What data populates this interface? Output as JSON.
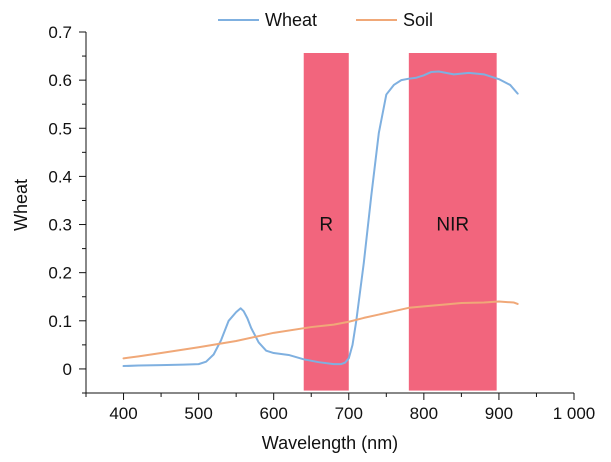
{
  "chart_data": {
    "type": "line",
    "title": "",
    "xlabel": "Wavelength (nm)",
    "ylabel": "Wheat",
    "xlim": [
      350,
      1000
    ],
    "ylim": [
      -0.05,
      0.7
    ],
    "xticks": [
      400,
      500,
      600,
      700,
      800,
      900,
      1000
    ],
    "xtick_labels": [
      "400",
      "500",
      "600",
      "700",
      "800",
      "900",
      "1 000"
    ],
    "yticks": [
      0,
      0.1,
      0.2,
      0.3,
      0.4,
      0.5,
      0.6,
      0.7
    ],
    "ytick_labels": [
      "0",
      "0.1",
      "0.2",
      "0.3",
      "0.4",
      "0.5",
      "0.6",
      "0.7"
    ],
    "grid": false,
    "legend_position": "top",
    "bands": [
      {
        "label": "R",
        "x0": 640,
        "x1": 700,
        "color": "#f2657d"
      },
      {
        "label": "NIR",
        "x0": 780,
        "x1": 897,
        "color": "#f2657d"
      }
    ],
    "series": [
      {
        "name": "Wheat",
        "color": "#7fb0e0",
        "x": [
          400,
          420,
          450,
          480,
          500,
          510,
          520,
          530,
          540,
          550,
          556,
          560,
          565,
          570,
          580,
          590,
          600,
          620,
          640,
          660,
          680,
          690,
          695,
          700,
          705,
          710,
          720,
          730,
          740,
          750,
          760,
          770,
          780,
          790,
          800,
          810,
          820,
          840,
          860,
          880,
          900,
          915,
          925
        ],
        "values": [
          0.006,
          0.007,
          0.008,
          0.009,
          0.01,
          0.015,
          0.03,
          0.06,
          0.1,
          0.118,
          0.126,
          0.12,
          0.105,
          0.085,
          0.055,
          0.038,
          0.033,
          0.029,
          0.02,
          0.014,
          0.01,
          0.01,
          0.013,
          0.022,
          0.05,
          0.1,
          0.22,
          0.36,
          0.49,
          0.57,
          0.59,
          0.6,
          0.603,
          0.605,
          0.61,
          0.617,
          0.618,
          0.612,
          0.615,
          0.612,
          0.602,
          0.59,
          0.572
        ]
      },
      {
        "name": "Soil",
        "color": "#f0a878",
        "x": [
          400,
          420,
          450,
          500,
          550,
          600,
          650,
          680,
          700,
          720,
          740,
          760,
          780,
          800,
          830,
          850,
          880,
          900,
          920,
          925
        ],
        "values": [
          0.022,
          0.026,
          0.033,
          0.045,
          0.058,
          0.075,
          0.087,
          0.092,
          0.098,
          0.106,
          0.113,
          0.12,
          0.127,
          0.13,
          0.134,
          0.137,
          0.138,
          0.14,
          0.138,
          0.135
        ]
      }
    ]
  }
}
